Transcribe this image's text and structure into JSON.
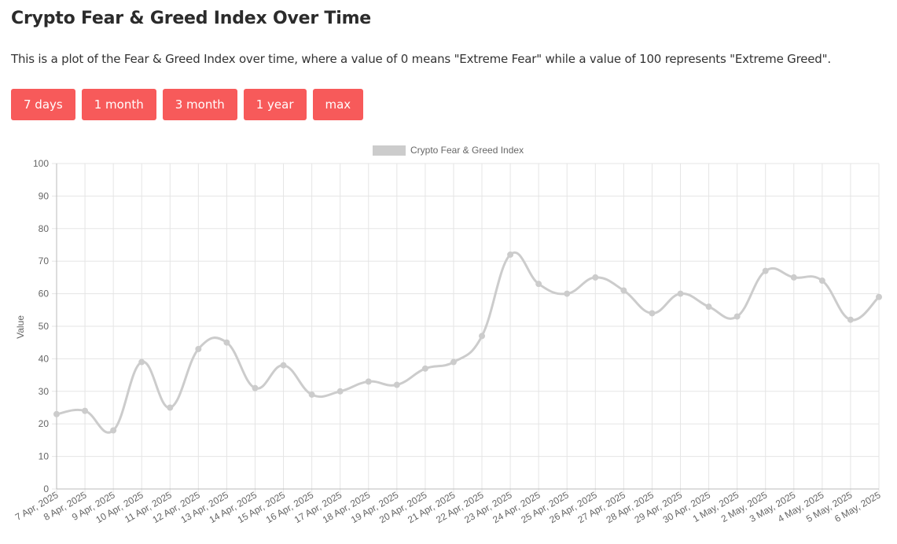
{
  "page": {
    "title": "Crypto Fear & Greed Index Over Time",
    "description": "This is a plot of the Fear & Greed Index over time, where a value of 0 means \"Extreme Fear\" while a value of 100 represents \"Extreme Greed\"."
  },
  "range_buttons": [
    "7 days",
    "1 month",
    "3 month",
    "1 year",
    "max"
  ],
  "colors": {
    "button_bg": "#f75a5a",
    "line": "#cccccc",
    "grid": "#e5e5e5",
    "tick_text": "#666666"
  },
  "chart_data": {
    "type": "line",
    "title": "",
    "xlabel": "",
    "ylabel": "Value",
    "ylim": [
      0,
      100
    ],
    "yticks": [
      0,
      10,
      20,
      30,
      40,
      50,
      60,
      70,
      80,
      90,
      100
    ],
    "grid": true,
    "legend_position": "top-center",
    "categories": [
      "7 Apr, 2025",
      "8 Apr, 2025",
      "9 Apr, 2025",
      "10 Apr, 2025",
      "11 Apr, 2025",
      "12 Apr, 2025",
      "13 Apr, 2025",
      "14 Apr, 2025",
      "15 Apr, 2025",
      "16 Apr, 2025",
      "17 Apr, 2025",
      "18 Apr, 2025",
      "19 Apr, 2025",
      "20 Apr, 2025",
      "21 Apr, 2025",
      "22 Apr, 2025",
      "23 Apr, 2025",
      "24 Apr, 2025",
      "25 Apr, 2025",
      "26 Apr, 2025",
      "27 Apr, 2025",
      "28 Apr, 2025",
      "29 Apr, 2025",
      "30 Apr, 2025",
      "1 May, 2025",
      "2 May, 2025",
      "3 May, 2025",
      "4 May, 2025",
      "5 May, 2025",
      "6 May, 2025"
    ],
    "series": [
      {
        "name": "Crypto Fear & Greed Index",
        "values": [
          23,
          24,
          18,
          39,
          25,
          43,
          45,
          31,
          38,
          29,
          30,
          33,
          32,
          37,
          39,
          47,
          72,
          63,
          60,
          65,
          61,
          54,
          60,
          56,
          53,
          67,
          65,
          64,
          52,
          59
        ]
      }
    ]
  }
}
